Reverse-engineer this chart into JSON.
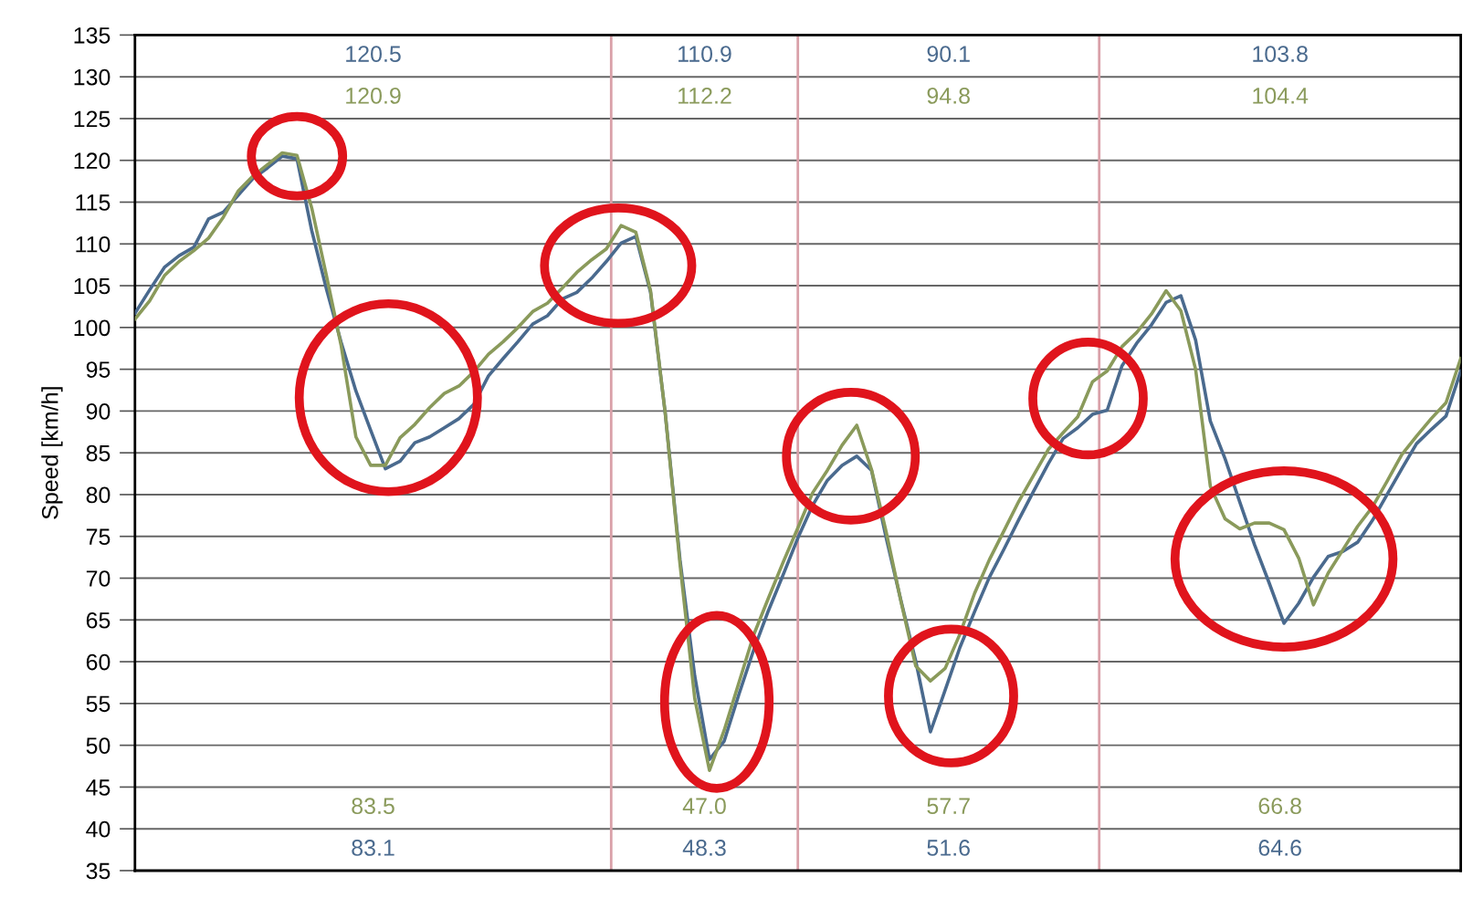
{
  "chart_data": {
    "type": "line",
    "ylabel": "Speed [km/h]",
    "categories": [
      null,
      null,
      null,
      null,
      null,
      null,
      null,
      null,
      null,
      null,
      null,
      null,
      null,
      null,
      null,
      null,
      null,
      null,
      null,
      null,
      null,
      null,
      null,
      null,
      null,
      null,
      null,
      null,
      null,
      null,
      null,
      null,
      null,
      null,
      null,
      null,
      null,
      null,
      null,
      null,
      null,
      null,
      null,
      null,
      null,
      null,
      null,
      null,
      null,
      null,
      null,
      null,
      null,
      null,
      null,
      null,
      null,
      null,
      null,
      null,
      null,
      null,
      null,
      null,
      null,
      null,
      null,
      null,
      null,
      null,
      null,
      null,
      null,
      null,
      null,
      null,
      null,
      null,
      null,
      null,
      null,
      null,
      null,
      null,
      null,
      null,
      null,
      null,
      null,
      null,
      null
    ],
    "ylim": [
      35,
      135
    ],
    "yticks": [
      35,
      40,
      45,
      50,
      55,
      60,
      65,
      70,
      75,
      80,
      85,
      90,
      95,
      100,
      105,
      110,
      115,
      120,
      125,
      130,
      135
    ],
    "tick_labels": "y",
    "grid": "y",
    "marker": "none",
    "line_style": "solid",
    "series": [
      {
        "color": "#4a6a8e",
        "values": [
          101.7,
          104.5,
          107.2,
          108.6,
          109.6,
          113.0,
          113.8,
          115.8,
          117.8,
          119.1,
          120.5,
          120.2,
          111.6,
          104.6,
          98.2,
          92.4,
          87.7,
          83.1,
          84.0,
          86.2,
          86.9,
          88.0,
          89.1,
          90.8,
          94.2,
          96.3,
          98.3,
          100.4,
          101.4,
          103.4,
          104.2,
          105.9,
          107.9,
          110.1,
          110.9,
          104.2,
          89.7,
          72.2,
          58.3,
          48.3,
          50.5,
          56.1,
          61.4,
          66.1,
          70.4,
          74.8,
          78.7,
          81.7,
          83.5,
          84.6,
          82.9,
          74.8,
          67.3,
          60.1,
          51.6,
          56.6,
          61.7,
          66.0,
          70.1,
          73.5,
          77.0,
          80.4,
          83.7,
          86.7,
          88.0,
          89.6,
          90.1,
          95.4,
          98.1,
          100.3,
          103.0,
          103.8,
          98.5,
          88.8,
          84.3,
          79.1,
          74.0,
          69.4,
          64.6,
          67.0,
          70.1,
          72.6,
          73.2,
          74.3,
          76.9,
          80.0,
          83.1,
          86.1,
          87.8,
          89.4,
          94.8
        ]
      },
      {
        "color": "#8a9a5b",
        "values": [
          101.0,
          103.2,
          106.2,
          107.9,
          109.2,
          110.7,
          113.2,
          116.3,
          118.1,
          119.5,
          120.9,
          120.6,
          114.3,
          106.2,
          97.8,
          86.9,
          83.5,
          83.5,
          86.8,
          88.4,
          90.4,
          92.1,
          93.0,
          94.7,
          96.8,
          98.3,
          100.0,
          101.9,
          102.9,
          104.7,
          106.6,
          108.1,
          109.4,
          112.2,
          111.4,
          104.4,
          89.7,
          71.7,
          55.6,
          47.0,
          51.8,
          57.5,
          63.2,
          67.6,
          71.9,
          76.0,
          80.2,
          82.9,
          85.9,
          88.3,
          83.0,
          75.5,
          67.2,
          59.5,
          57.7,
          59.2,
          63.3,
          68.2,
          72.2,
          75.7,
          79.2,
          82.3,
          85.4,
          87.4,
          89.3,
          93.5,
          94.8,
          97.7,
          99.4,
          101.6,
          104.4,
          102.0,
          95.0,
          81.0,
          77.1,
          75.9,
          76.6,
          76.6,
          75.8,
          72.4,
          66.8,
          70.6,
          73.4,
          76.2,
          78.5,
          81.6,
          84.8,
          87.0,
          89.1,
          91.0,
          96.3
        ]
      }
    ],
    "annotations": [
      "120.5",
      "120.9",
      "83.5",
      "83.1",
      "110.9",
      "112.2",
      "47.0",
      "48.3",
      "90.1",
      "94.8",
      "57.7",
      "51.6",
      "103.8",
      "104.4",
      "66.8",
      "64.6"
    ]
  }
}
